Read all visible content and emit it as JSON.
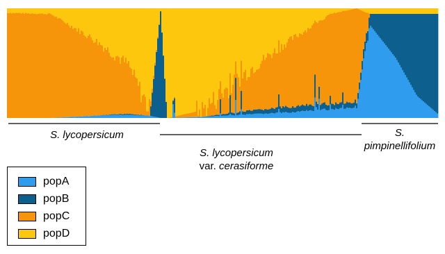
{
  "chart_data": {
    "type": "stacked-bar",
    "orientation": "vertical",
    "description_of_order": "individuals ordered left to right within three sample groups",
    "legend": [
      {
        "name": "popA",
        "color": "#2f9cee"
      },
      {
        "name": "popB",
        "color": "#0d5f8e"
      },
      {
        "name": "popC",
        "color": "#f7950a"
      },
      {
        "name": "popD",
        "color": "#fdc70d"
      }
    ],
    "groups": [
      {
        "label_parts": [
          {
            "text": "S. lycopersicum",
            "italic": true
          }
        ],
        "from": 0.0,
        "to": 0.355
      },
      {
        "label_parts": [
          {
            "text": "S. lycopersicum",
            "italic": true
          },
          {
            "text": "var. ",
            "italic": false
          },
          {
            "text": "cerasiforme",
            "italic": true
          }
        ],
        "from": 0.355,
        "to": 0.82
      },
      {
        "label_parts": [
          {
            "text": "S.",
            "italic": true
          },
          {
            "text": "pimpinellifolium",
            "italic": true
          }
        ],
        "from": 0.82,
        "to": 1.0
      }
    ],
    "ylim": [
      0,
      1
    ],
    "segments_note": "per-individual membership proportions (popA, popB, popC, popD), approximated profile",
    "profile": [
      {
        "x": 0.0,
        "popA": 0.0,
        "popB": 0.0,
        "popC": 0.96,
        "popD": 0.04
      },
      {
        "x": 0.1,
        "popA": 0.0,
        "popB": 0.0,
        "popC": 0.95,
        "popD": 0.05
      },
      {
        "x": 0.2,
        "popA": 0.02,
        "popB": 0.0,
        "popC": 0.7,
        "popD": 0.28
      },
      {
        "x": 0.28,
        "popA": 0.03,
        "popB": 0.01,
        "popC": 0.45,
        "popD": 0.51
      },
      {
        "x": 0.33,
        "popA": 0.02,
        "popB": 0.0,
        "popC": 0.05,
        "popD": 0.93
      },
      {
        "x": 0.355,
        "popA": 0.0,
        "popB": 0.98,
        "popC": 0.0,
        "popD": 0.02
      },
      {
        "x": 0.37,
        "popA": 0.0,
        "popB": 0.0,
        "popC": 0.0,
        "popD": 1.0
      },
      {
        "x": 0.45,
        "popA": 0.01,
        "popB": 0.0,
        "popC": 0.06,
        "popD": 0.93
      },
      {
        "x": 0.55,
        "popA": 0.03,
        "popB": 0.03,
        "popC": 0.35,
        "popD": 0.59
      },
      {
        "x": 0.65,
        "popA": 0.05,
        "popB": 0.05,
        "popC": 0.6,
        "popD": 0.3
      },
      {
        "x": 0.75,
        "popA": 0.08,
        "popB": 0.05,
        "popC": 0.82,
        "popD": 0.05
      },
      {
        "x": 0.81,
        "popA": 0.1,
        "popB": 0.05,
        "popC": 0.85,
        "popD": 0.0
      },
      {
        "x": 0.84,
        "popA": 0.85,
        "popB": 0.1,
        "popC": 0.0,
        "popD": 0.05
      },
      {
        "x": 0.9,
        "popA": 0.55,
        "popB": 0.4,
        "popC": 0.0,
        "popD": 0.05
      },
      {
        "x": 0.95,
        "popA": 0.2,
        "popB": 0.75,
        "popC": 0.0,
        "popD": 0.05
      },
      {
        "x": 1.0,
        "popA": 0.03,
        "popB": 0.92,
        "popC": 0.0,
        "popD": 0.05
      }
    ]
  }
}
